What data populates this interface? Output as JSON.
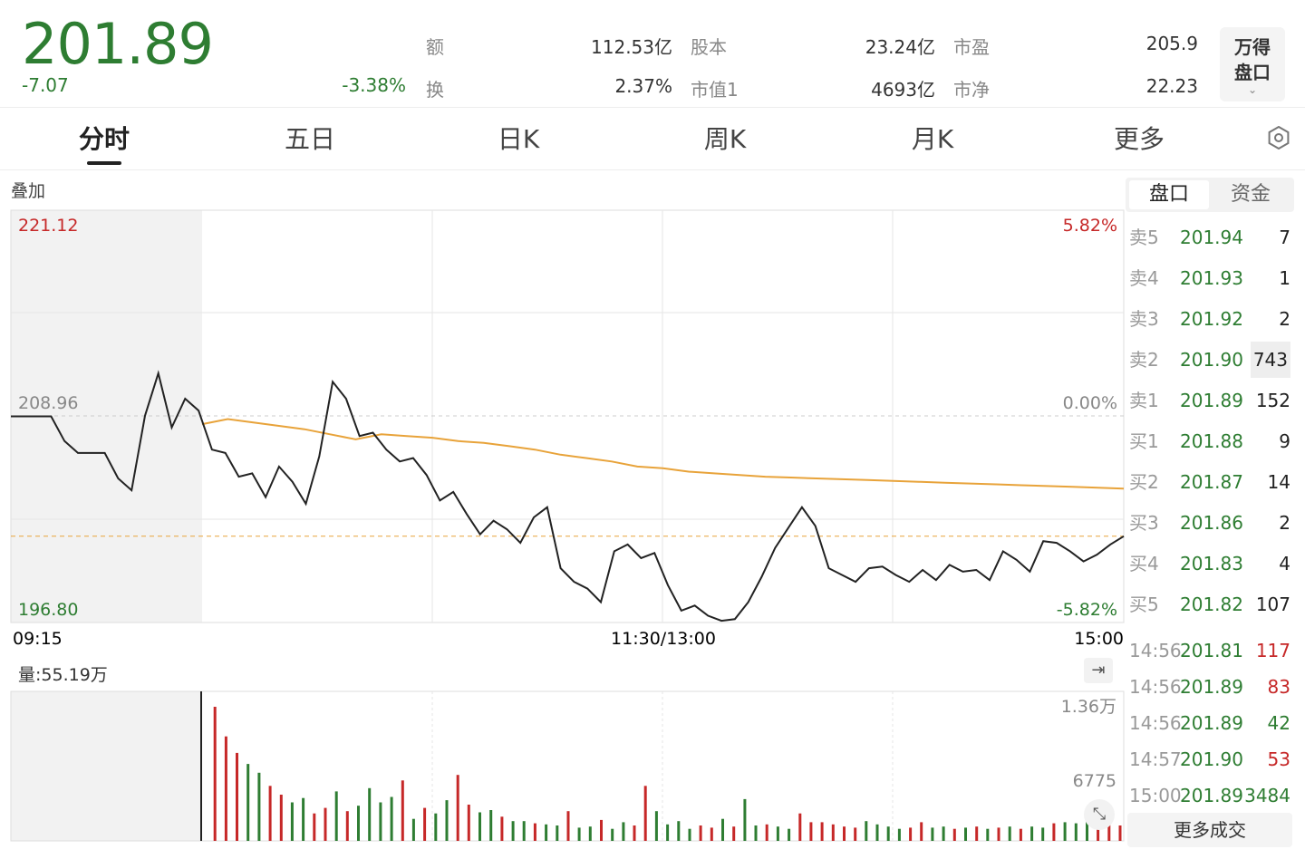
{
  "quote": {
    "price": "201.89",
    "change": "-7.07",
    "change_pct": "-3.38%",
    "fields": [
      {
        "label": "额",
        "value": "112.53亿"
      },
      {
        "label": "股本",
        "value": "23.24亿"
      },
      {
        "label": "市盈",
        "value": "205.9"
      },
      {
        "label": "换",
        "value": "2.37%"
      },
      {
        "label": "市值1",
        "value": "4693亿"
      },
      {
        "label": "市净",
        "value": "22.23"
      }
    ],
    "wande_button": [
      "万得",
      "盘口"
    ]
  },
  "tabs": [
    "分时",
    "五日",
    "日K",
    "周K",
    "月K",
    "更多"
  ],
  "active_tab": 0,
  "chart": {
    "overlay_label": "叠加",
    "price_max": "221.12",
    "price_mid": "208.96",
    "price_min": "196.80",
    "pct_max": "5.82%",
    "pct_mid": "0.00%",
    "pct_min": "-5.82%",
    "time_start": "09:15",
    "time_mid": "11:30/13:00",
    "time_end": "15:00",
    "volume_label": "量:55.19万",
    "vol_max": "1.36万",
    "vol_mid": "6775"
  },
  "chart_data": {
    "type": "line",
    "x_range": [
      "09:15",
      "15:00"
    ],
    "ylim": [
      196.8,
      221.12
    ],
    "prev_close": 208.96,
    "series": [
      {
        "values": [
          208.96,
          208.96,
          208.96,
          208.96,
          207.5,
          206.8,
          206.8,
          206.8,
          205.3,
          204.6,
          209.0,
          211.5,
          208.3,
          210.0,
          209.3,
          207.0,
          206.8,
          205.4,
          205.6,
          204.2,
          206.0,
          205.1,
          203.8,
          206.6,
          211.0,
          210.0,
          207.8,
          208.0,
          207.0,
          206.3,
          206.5,
          205.5,
          204.0,
          204.5,
          203.2,
          202.0,
          202.8,
          202.3,
          201.5,
          203.0,
          203.6,
          200.0,
          199.2,
          198.8,
          198.0,
          201.0,
          201.4,
          200.6,
          200.9,
          199.0,
          197.5,
          197.8,
          197.2,
          196.9,
          197.0,
          198.0,
          199.5,
          201.2,
          202.4,
          203.6,
          202.5,
          200.0,
          199.6,
          199.2,
          200.0,
          200.1,
          199.6,
          199.2,
          199.9,
          199.3,
          200.2,
          199.8,
          199.9,
          199.3,
          201.0,
          200.5,
          199.8,
          201.6,
          201.5,
          201.0,
          200.4,
          200.8,
          201.4,
          201.89
        ]
      },
      {
        "values": [
          208.5,
          208.8,
          208.6,
          208.4,
          208.2,
          207.9,
          207.6,
          207.9,
          207.8,
          207.7,
          207.5,
          207.4,
          207.2,
          207.0,
          206.7,
          206.5,
          206.3,
          206.0,
          205.9,
          205.7,
          205.6,
          205.5,
          205.4,
          205.35,
          205.3,
          205.25,
          205.2,
          205.15,
          205.1,
          205.05,
          205.0,
          204.95,
          204.9,
          204.85,
          204.8,
          204.75,
          204.7
        ]
      }
    ],
    "volume": {
      "ylim": [
        0,
        13600
      ],
      "mid_tick": 6775,
      "values": [
        600,
        12200,
        9500,
        8000,
        7000,
        6200,
        5000,
        4200,
        3500,
        3900,
        2500,
        3000,
        4500,
        2700,
        3200,
        4800,
        3500,
        4000,
        5500,
        2000,
        3000,
        2500,
        3700,
        6000,
        3300,
        2600,
        2800,
        2200,
        1800,
        1800,
        1600,
        1500,
        1400,
        2700,
        1200,
        1300,
        1900,
        1100,
        1700,
        1400,
        5000,
        2700,
        1500,
        1800,
        1100,
        1400,
        1200,
        2000,
        1300,
        3800,
        1400,
        1500,
        1300,
        1100,
        2500,
        1700,
        1700,
        1500,
        1300,
        1200,
        1800,
        1500,
        1300,
        1100,
        1200,
        1700,
        1200,
        1300,
        1100,
        1200,
        1300,
        1100,
        1200,
        1300,
        1100,
        1300,
        1200,
        1600,
        1700,
        1600,
        1900,
        1800,
        1700,
        1400
      ]
    }
  },
  "order_book_tabs": [
    "盘口",
    "资金"
  ],
  "order_book": [
    {
      "label": "卖5",
      "price": "201.94",
      "vol": "7"
    },
    {
      "label": "卖4",
      "price": "201.93",
      "vol": "1"
    },
    {
      "label": "卖3",
      "price": "201.92",
      "vol": "2"
    },
    {
      "label": "卖2",
      "price": "201.90",
      "vol": "743"
    },
    {
      "label": "卖1",
      "price": "201.89",
      "vol": "152"
    },
    {
      "label": "买1",
      "price": "201.88",
      "vol": "9"
    },
    {
      "label": "买2",
      "price": "201.87",
      "vol": "14"
    },
    {
      "label": "买3",
      "price": "201.86",
      "vol": "2"
    },
    {
      "label": "买4",
      "price": "201.83",
      "vol": "4"
    },
    {
      "label": "买5",
      "price": "201.82",
      "vol": "107"
    }
  ],
  "trades": [
    {
      "time": "14:56",
      "price": "201.81",
      "vol": "117",
      "color": "#c62828"
    },
    {
      "time": "14:56",
      "price": "201.89",
      "vol": "83",
      "color": "#c62828"
    },
    {
      "time": "14:56",
      "price": "201.89",
      "vol": "42",
      "color": "#2e7d32"
    },
    {
      "time": "14:57",
      "price": "201.90",
      "vol": "53",
      "color": "#c62828"
    },
    {
      "time": "15:00",
      "price": "201.89",
      "vol": "3484",
      "color": "#2e7d32"
    }
  ],
  "more_trades": "更多成交",
  "colors": {
    "up": "#c62828",
    "down": "#2e7d32",
    "avg_line": "#e8a33a",
    "price_line": "#222222"
  }
}
